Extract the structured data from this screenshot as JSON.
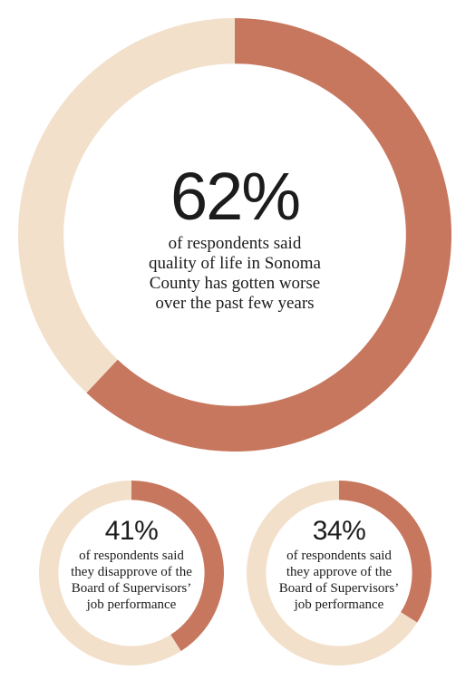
{
  "colors": {
    "highlight": "#c8775f",
    "remainder": "#f2e0cb",
    "text": "#1c1c1c",
    "background": "#ffffff"
  },
  "chart_data": [
    {
      "type": "pie",
      "style": "donut",
      "value_percent": 62,
      "remainder_percent": 38,
      "label": "62%",
      "description_lines": [
        "of respondents said",
        "quality of life in Sonoma",
        "County has gotten worse",
        "over the past few years"
      ]
    },
    {
      "type": "pie",
      "style": "donut",
      "value_percent": 41,
      "remainder_percent": 59,
      "label": "41%",
      "description_lines": [
        "of respondents said",
        "they disapprove of the",
        "Board of Supervisors’",
        "job performance"
      ]
    },
    {
      "type": "pie",
      "style": "donut",
      "value_percent": 34,
      "remainder_percent": 66,
      "label": "34%",
      "description_lines": [
        "of respondents said",
        "they approve of the",
        "Board of Supervisors’",
        "job performance"
      ]
    }
  ]
}
